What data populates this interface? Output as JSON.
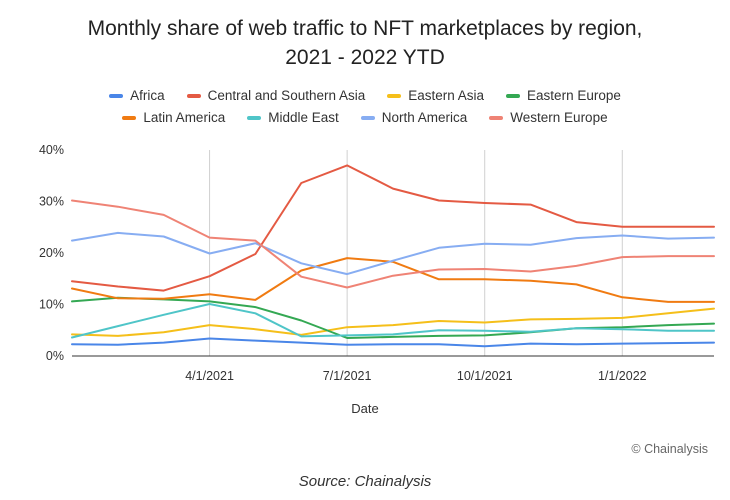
{
  "title_line1": "Monthly share of web traffic to NFT marketplaces by region,",
  "title_line2": "2021 - 2022 YTD",
  "credit": "© Chainalysis",
  "source": "Source: Chainalysis",
  "chart_data": {
    "type": "line",
    "title": "Monthly share of web traffic to NFT marketplaces by region, 2021 - 2022 YTD",
    "xlabel": "Date",
    "ylabel": "",
    "x": [
      "2021-01",
      "2021-02",
      "2021-03",
      "2021-04",
      "2021-05",
      "2021-06",
      "2021-07",
      "2021-08",
      "2021-09",
      "2021-10",
      "2021-11",
      "2021-12",
      "2022-01",
      "2022-02",
      "2022-03"
    ],
    "x_ticks": [
      "4/1/2021",
      "7/1/2021",
      "10/1/2021",
      "1/1/2022"
    ],
    "y_ticks": [
      "0%",
      "10%",
      "20%",
      "30%",
      "40%"
    ],
    "ylim": [
      0,
      40
    ],
    "grid": "vertical lines at x ticks",
    "legend_position": "top",
    "series": [
      {
        "name": "Africa",
        "color": "#4a86e8",
        "values": [
          2.3,
          2.2,
          2.6,
          3.4,
          3.0,
          2.6,
          2.2,
          2.3,
          2.3,
          1.9,
          2.4,
          2.3,
          2.4,
          2.5,
          2.6
        ]
      },
      {
        "name": "Central and Southern Asia",
        "color": "#e45a43",
        "values": [
          14.5,
          13.5,
          12.7,
          15.5,
          19.8,
          33.6,
          37.0,
          32.5,
          30.2,
          29.7,
          29.4,
          26.0,
          25.1,
          25.1,
          25.1
        ]
      },
      {
        "name": "Eastern Asia",
        "color": "#f5bf1a",
        "values": [
          4.2,
          3.9,
          4.6,
          6.0,
          5.2,
          4.1,
          5.6,
          6.0,
          6.8,
          6.5,
          7.1,
          7.2,
          7.4,
          8.3,
          9.2
        ]
      },
      {
        "name": "Eastern Europe",
        "color": "#34a853",
        "values": [
          10.6,
          11.3,
          11.0,
          10.6,
          9.5,
          6.9,
          3.5,
          3.7,
          3.9,
          4.0,
          4.6,
          5.4,
          5.6,
          6.0,
          6.3
        ]
      },
      {
        "name": "Latin America",
        "color": "#f07b12",
        "values": [
          13.1,
          11.2,
          11.1,
          12.0,
          10.9,
          16.6,
          19.0,
          18.3,
          14.9,
          14.9,
          14.6,
          13.9,
          11.4,
          10.5,
          10.5
        ]
      },
      {
        "name": "Middle East",
        "color": "#4fc5c8",
        "values": [
          3.6,
          5.8,
          8.0,
          10.1,
          8.3,
          3.8,
          4.0,
          4.2,
          5.0,
          4.9,
          4.7,
          5.4,
          5.2,
          4.9,
          4.9
        ]
      },
      {
        "name": "North America",
        "color": "#87adf2",
        "values": [
          22.4,
          23.9,
          23.2,
          19.9,
          21.9,
          18.0,
          15.9,
          18.5,
          21.0,
          21.8,
          21.6,
          22.9,
          23.4,
          22.8,
          23.0
        ]
      },
      {
        "name": "Western Europe",
        "color": "#ef8375",
        "values": [
          30.2,
          29.0,
          27.4,
          23.0,
          22.4,
          15.4,
          13.3,
          15.6,
          16.8,
          16.9,
          16.4,
          17.5,
          19.2,
          19.4,
          19.4
        ]
      }
    ]
  }
}
